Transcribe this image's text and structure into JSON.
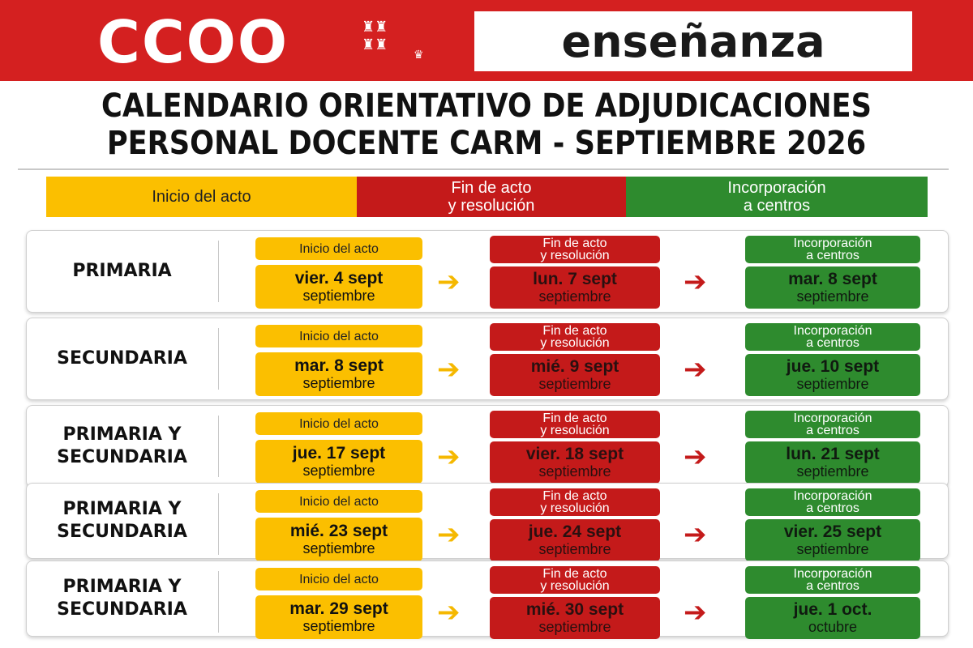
{
  "header": {
    "logo": "CCOO",
    "brand": "enseñanza",
    "title_line1": "CALENDARIO ORIENTATIVO DE ADJUDICACIONES",
    "title_line2": "PERSONAL DOCENTE CARM - SEPTIEMBRE 2026"
  },
  "legend": {
    "start": "Inicio del acto",
    "end_line1": "Fin de acto",
    "end_line2": "y resolución",
    "join_line1": "Incorporación",
    "join_line2": "a centros"
  },
  "labels": {
    "start": "Inicio del acto",
    "end_line1": "Fin de acto",
    "end_line2": "y resolución",
    "join_line1": "Incorporación",
    "join_line2": "a centros"
  },
  "colors": {
    "red": "#d42020",
    "yellow": "#fbbf00",
    "dark_red": "#c41a1a",
    "green": "#2e8b2e"
  },
  "rows": [
    {
      "level_line1": "PRIMARIA",
      "level_line2": "",
      "start_date": "vier. 4 sept",
      "start_month": "septiembre",
      "end_date": "lun. 7 sept",
      "end_month": "septiembre",
      "join_date": "mar. 8 sept",
      "join_month": "septiembre"
    },
    {
      "level_line1": "SECUNDARIA",
      "level_line2": "",
      "start_date": "mar. 8 sept",
      "start_month": "septiembre",
      "end_date": "mié. 9 sept",
      "end_month": "septiembre",
      "join_date": "jue. 10 sept",
      "join_month": "septiembre"
    },
    {
      "level_line1": "PRIMARIA Y",
      "level_line2": "SECUNDARIA",
      "start_date": "jue. 17 sept",
      "start_month": "septiembre",
      "end_date": "vier. 18 sept",
      "end_month": "septiembre",
      "join_date": "lun. 21 sept",
      "join_month": "septiembre"
    },
    {
      "level_line1": "PRIMARIA Y",
      "level_line2": "SECUNDARIA",
      "start_date": "mié. 23 sept",
      "start_month": "septiembre",
      "end_date": "jue. 24 sept",
      "end_month": "septiembre",
      "join_date": "vier. 25 sept",
      "join_month": "septiembre"
    },
    {
      "level_line1": "PRIMARIA Y",
      "level_line2": "SECUNDARIA",
      "start_date": "mar. 29 sept",
      "start_month": "septiembre",
      "end_date": "mié. 30 sept",
      "end_month": "septiembre",
      "join_date": "jue. 1 oct.",
      "join_month": "octubre"
    }
  ]
}
